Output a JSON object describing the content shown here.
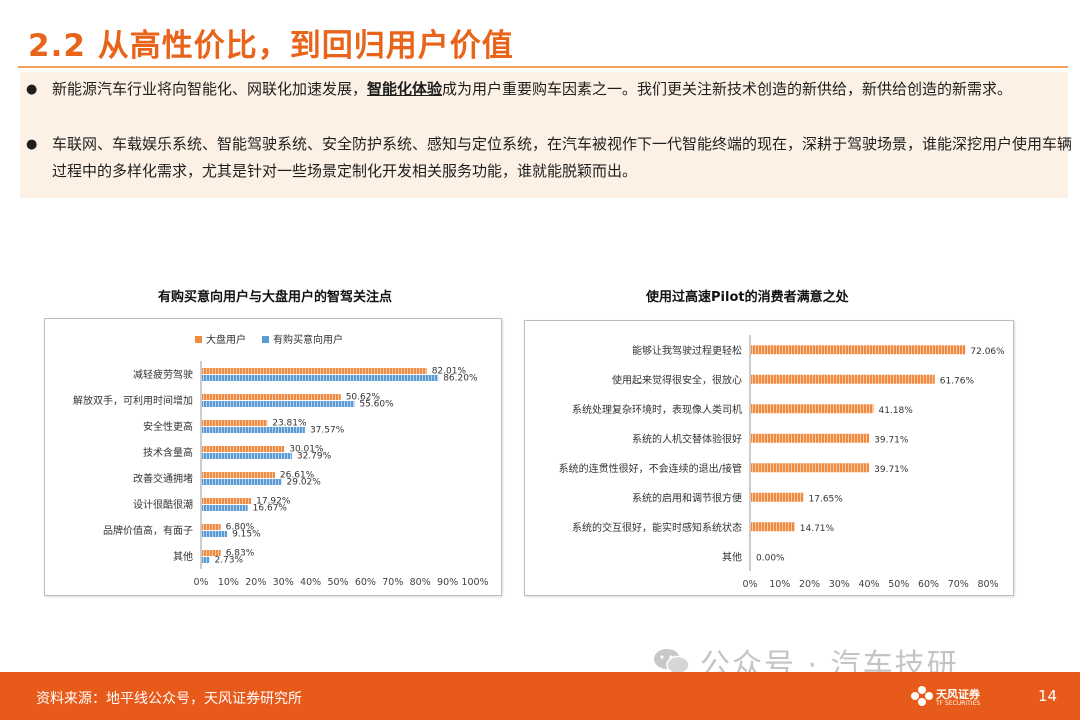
{
  "title": "2.2 从高性价比，到回归用户价值",
  "bullets": [
    {
      "pre": "新能源汽车行业将向智能化、网联化加速发展，",
      "highlight": "智能化体验",
      "post": "成为用户重要购车因素之一。我们更关注新技术创造的新供给，新供给创造的新需求。"
    },
    {
      "pre": "车联网、车载娱乐系统、智能驾驶系统、安全防护系统、感知与定位系统，在汽车被视作下一代智能终端的现在，深耕于驾驶场景，谁能深挖用户使用车辆过程中的多样化需求，尤其是针对一些场景定制化开发相关服务功能，谁就能脱颖而出。",
      "highlight": "",
      "post": ""
    }
  ],
  "chart_data": [
    {
      "type": "bar",
      "orientation": "horizontal",
      "title": "有购买意向用户与大盘用户的智驾关注点",
      "categories": [
        "减轻疲劳驾驶",
        "解放双手，可利用时间增加",
        "安全性更高",
        "技术含量高",
        "改善交通拥堵",
        "设计很酷很潮",
        "品牌价值高，有面子",
        "其他"
      ],
      "series": [
        {
          "name": "大盘用户",
          "color": "#f08a3e",
          "values": [
            82.01,
            50.62,
            23.81,
            30.01,
            26.61,
            17.92,
            6.8,
            6.83
          ],
          "labels": [
            "82.01%",
            "50.62%",
            "23.81%",
            "30.01%",
            "26.61%",
            "17.92%",
            "6.80%",
            "6.83%"
          ]
        },
        {
          "name": "有购买意向用户",
          "color": "#5b9bd5",
          "values": [
            86.2,
            55.6,
            37.57,
            32.79,
            29.02,
            16.67,
            9.15,
            2.73
          ],
          "labels": [
            "86.20%",
            "55.60%",
            "37.57%",
            "32.79%",
            "29.02%",
            "16.67%",
            "9.15%",
            "2.73%"
          ]
        }
      ],
      "xlim": [
        0,
        100
      ],
      "xticks": [
        "0%",
        "10%",
        "20%",
        "30%",
        "40%",
        "50%",
        "60%",
        "70%",
        "80%",
        "90%",
        "100%"
      ],
      "legend": "top-left"
    },
    {
      "type": "bar",
      "orientation": "horizontal",
      "title": "使用过高速Pilot的消费者满意之处",
      "categories": [
        "能够让我驾驶过程更轻松",
        "使用起来觉得很安全，很放心",
        "系统处理复杂环境时，表现像人类司机",
        "系统的人机交替体验很好",
        "系统的连贯性很好，不会连续的退出/接管",
        "系统的启用和调节很方便",
        "系统的交互很好，能实时感知系统状态",
        "其他"
      ],
      "series": [
        {
          "name": "",
          "color": "#f08a3e",
          "values": [
            72.06,
            61.76,
            41.18,
            39.71,
            39.71,
            17.65,
            14.71,
            0.0
          ],
          "labels": [
            "72.06%",
            "61.76%",
            "41.18%",
            "39.71%",
            "39.71%",
            "17.65%",
            "14.71%",
            "0.00%"
          ]
        }
      ],
      "xlim": [
        0,
        80
      ],
      "xticks": [
        "0%",
        "10%",
        "20%",
        "30%",
        "40%",
        "50%",
        "60%",
        "70%",
        "80%"
      ]
    }
  ],
  "footer": {
    "source": "资料来源：地平线公众号，天风证券研究所",
    "logo_name": "天风证券",
    "logo_sub": "TF SECURITIES",
    "page": "14"
  },
  "watermark": "公众号 · 汽车技研"
}
